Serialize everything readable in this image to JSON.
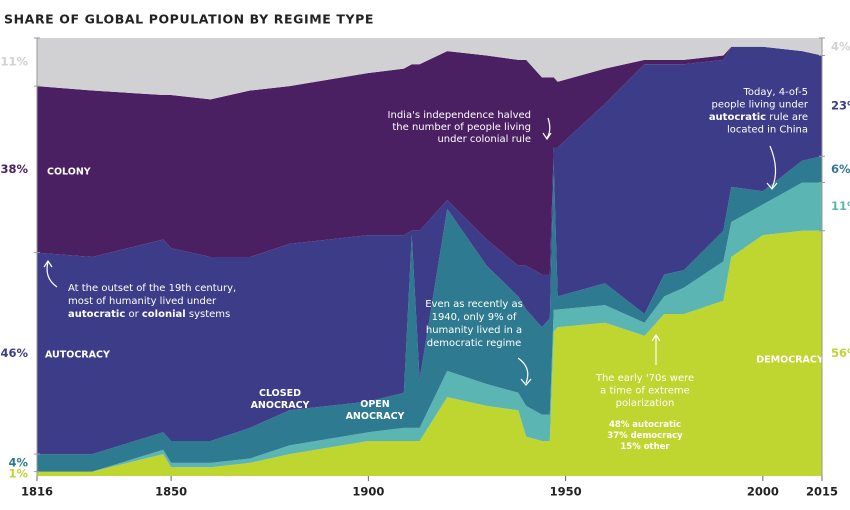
{
  "chart_data": {
    "type": "stacked_area",
    "title": "SHARE OF GLOBAL POPULATION BY REGIME TYPE",
    "x": [
      1816,
      1830,
      1848,
      1850,
      1860,
      1870,
      1880,
      1900,
      1909,
      1911,
      1913,
      1920,
      1930,
      1938,
      1940,
      1944,
      1946,
      1947,
      1948,
      1960,
      1970,
      1975,
      1980,
      1990,
      1992,
      2000,
      2010,
      2015
    ],
    "xlim": [
      1816,
      2015
    ],
    "xticks": [
      1816,
      1850,
      1900,
      1950,
      2000,
      2015
    ],
    "ylim": [
      0,
      100
    ],
    "series": [
      {
        "name": "DEMOCRACY",
        "color": "#bfd630",
        "values": [
          1,
          1,
          5,
          2,
          2,
          3,
          5,
          8,
          8,
          8,
          8,
          18,
          16,
          15,
          9,
          8,
          8,
          33,
          34,
          35,
          32,
          37,
          37,
          40,
          50,
          55,
          56,
          56
        ],
        "value_labels": [
          "1%",
          null,
          null,
          null,
          null,
          null,
          null,
          null,
          null,
          null,
          null,
          null,
          null,
          null,
          null,
          null,
          null,
          null,
          null,
          null,
          null,
          null,
          null,
          null,
          null,
          null,
          null,
          "56%"
        ]
      },
      {
        "name": "OPEN ANOCRACY",
        "color": "#5bb5b3",
        "values": [
          0,
          0,
          1,
          1,
          1,
          1,
          2,
          2,
          3,
          3,
          3,
          6,
          5,
          4,
          7,
          6,
          6,
          5,
          4,
          4,
          3,
          4,
          6,
          9,
          8,
          7,
          11,
          11
        ],
        "value_labels": [
          null,
          null,
          null,
          null,
          null,
          null,
          null,
          null,
          null,
          null,
          null,
          null,
          null,
          null,
          null,
          null,
          null,
          null,
          null,
          null,
          null,
          null,
          null,
          null,
          null,
          null,
          null,
          "11%"
        ]
      },
      {
        "name": "CLOSED ANOCRACY",
        "color": "#2e7a90",
        "values": [
          4,
          4,
          4,
          5,
          5,
          7,
          8,
          7,
          8,
          44,
          11,
          37,
          27,
          22,
          22,
          20,
          22,
          33,
          3,
          5,
          2,
          5,
          4,
          7,
          8,
          3,
          5,
          6
        ],
        "value_labels": [
          "4%",
          null,
          null,
          null,
          null,
          null,
          null,
          null,
          null,
          null,
          null,
          null,
          null,
          null,
          null,
          null,
          null,
          null,
          null,
          null,
          null,
          null,
          null,
          null,
          null,
          null,
          null,
          "6%"
        ]
      },
      {
        "name": "AUTOCRACY",
        "color": "#3d3c88",
        "values": [
          46,
          45,
          44,
          44,
          42,
          39,
          38,
          38,
          36,
          1,
          34,
          2,
          6,
          7,
          10,
          12,
          10,
          4,
          34,
          41,
          57,
          48,
          47,
          39,
          32,
          33,
          25,
          23
        ],
        "value_labels": [
          "46%",
          null,
          null,
          null,
          null,
          null,
          null,
          null,
          null,
          null,
          null,
          null,
          null,
          null,
          null,
          null,
          null,
          null,
          null,
          null,
          null,
          null,
          null,
          null,
          null,
          null,
          null,
          "23%"
        ]
      },
      {
        "name": "COLONY",
        "color": "#4a2062",
        "values": [
          38,
          38,
          33,
          35,
          36,
          38,
          36,
          37,
          38,
          38,
          38,
          34,
          42,
          47,
          47,
          45,
          45,
          16,
          15,
          8,
          1,
          1,
          1,
          1,
          0,
          0,
          0,
          0
        ],
        "value_labels": [
          "38%",
          null,
          null,
          null,
          null,
          null,
          null,
          null,
          null,
          null,
          null,
          null,
          null,
          null,
          null,
          null,
          null,
          null,
          null,
          null,
          null,
          null,
          null,
          null,
          null,
          null,
          null,
          null
        ]
      },
      {
        "color": "#d1d1d3",
        "values": [
          11,
          12,
          13,
          13,
          14,
          12,
          11,
          8,
          7,
          6,
          6,
          3,
          4,
          5,
          5,
          9,
          9,
          9,
          10,
          7,
          5,
          5,
          5,
          4,
          2,
          2,
          3,
          4
        ],
        "value_labels": [
          "11%",
          null,
          null,
          null,
          null,
          null,
          null,
          null,
          null,
          null,
          null,
          null,
          null,
          null,
          null,
          null,
          null,
          null,
          null,
          null,
          null,
          null,
          null,
          null,
          null,
          null,
          null,
          "4%"
        ]
      }
    ],
    "annotations": [
      {
        "lines": [
          [
            "India's independence halved"
          ],
          [
            "the number of people living"
          ],
          [
            "under colonial rule"
          ]
        ]
      },
      {
        "lines": [
          [
            "Today, 4-of-5"
          ],
          [
            "people living under"
          ],
          [
            {
              "text": "autocratic",
              "bold": true
            },
            " rule are"
          ],
          [
            "located in China"
          ]
        ]
      },
      {
        "lines": [
          [
            "At the outset of the 19th century,"
          ],
          [
            "most of humanity lived under"
          ],
          [
            {
              "text": "autocratic",
              "bold": true
            },
            " or ",
            {
              "text": "colonial",
              "bold": true
            },
            " systems"
          ]
        ]
      },
      {
        "lines": [
          [
            "Even as recently as"
          ],
          [
            "1940, only 9% of"
          ],
          [
            "humanity lived in a"
          ],
          [
            "democratic regime"
          ]
        ]
      },
      {
        "lines": [
          [
            "The early '70s were"
          ],
          [
            "a time of extreme"
          ],
          [
            "polarization"
          ]
        ]
      },
      {
        "lines": [
          [
            {
              "text": "48% autocratic",
              "bold": true
            }
          ],
          [
            {
              "text": "37% democracy",
              "bold": true
            }
          ],
          [
            {
              "text": "15% other",
              "bold": true
            }
          ]
        ]
      }
    ]
  }
}
